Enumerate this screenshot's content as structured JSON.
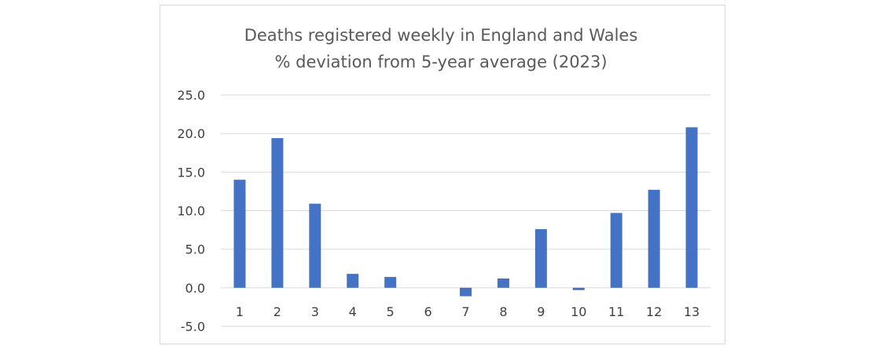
{
  "chart_data": {
    "type": "bar",
    "title": "Deaths registered weekly in England and Wales",
    "subtitle": "% deviation from 5-year average (2023)",
    "xlabel": "",
    "ylabel": "",
    "categories": [
      "1",
      "2",
      "3",
      "4",
      "5",
      "6",
      "7",
      "8",
      "9",
      "10",
      "11",
      "12",
      "13"
    ],
    "values": [
      14.0,
      19.4,
      10.9,
      1.8,
      1.4,
      0.0,
      -1.1,
      1.2,
      7.6,
      -0.3,
      9.7,
      12.7,
      20.8
    ],
    "ylim": [
      -5,
      25
    ],
    "yticks": [
      25,
      20,
      15,
      10,
      5,
      0,
      -5
    ],
    "ytick_labels": [
      "25.0",
      "20.0",
      "15.0",
      "10.0",
      "5.0",
      "0.0",
      "-5.0"
    ],
    "grid": true,
    "legend": "none",
    "bar_color": "#4472c4"
  }
}
